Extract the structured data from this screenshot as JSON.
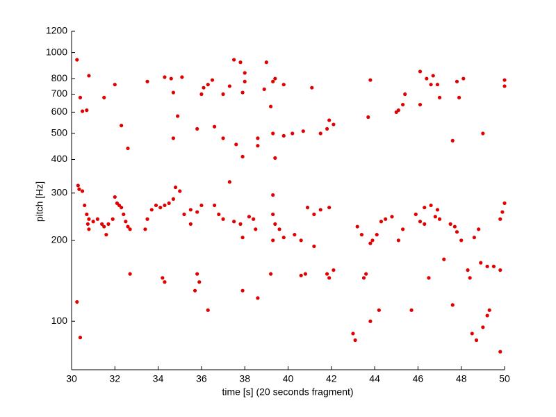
{
  "chart_data": {
    "type": "scatter",
    "xlabel": "time [s] (20 seconds fragment)",
    "ylabel": "pitch [Hz]",
    "color": "#e00000",
    "yscale": "log",
    "xlim": [
      30,
      50
    ],
    "ylim": [
      66,
      1200
    ],
    "xticks": [
      30,
      32,
      34,
      36,
      38,
      40,
      42,
      44,
      46,
      48,
      50
    ],
    "yticks": [
      100,
      200,
      300,
      400,
      500,
      600,
      700,
      800,
      1000,
      1200
    ],
    "x": [
      30.25,
      30.4,
      30.5,
      30.7,
      30.8,
      30.3,
      30.35,
      30.5,
      30.6,
      30.7,
      30.8,
      30.75,
      30.8,
      31.0,
      31.2,
      31.4,
      31.5,
      31.6,
      31.7,
      31.9,
      30.25,
      30.4,
      31.5,
      32.0,
      32.3,
      32.6,
      32.0,
      32.1,
      32.2,
      32.3,
      32.4,
      32.5,
      32.6,
      32.7,
      32.7,
      33.5,
      33.4,
      33.5,
      33.7,
      33.9,
      34.1,
      34.3,
      34.5,
      34.7,
      34.8,
      35.0,
      34.3,
      34.6,
      34.7,
      35.1,
      34.7,
      34.9,
      34.3,
      34.2,
      35.2,
      35.5,
      35.8,
      36.0,
      35.5,
      35.9,
      35.8,
      35.7,
      36.3,
      35.8,
      36.1,
      36.0,
      36.3,
      36.5,
      36.6,
      36.6,
      37.0,
      36.8,
      37.0,
      37.5,
      37.8,
      37.0,
      37.3,
      37.5,
      37.8,
      38.0,
      38.0,
      37.9,
      37.3,
      37.6,
      37.9,
      38.2,
      38.4,
      38.5,
      38.6,
      38.6,
      38.6,
      37.9,
      37.9,
      39.0,
      39.3,
      39.4,
      39.8,
      38.9,
      39.2,
      39.3,
      39.4,
      39.3,
      39.3,
      39.4,
      39.6,
      39.8,
      40.3,
      40.6,
      39.2,
      39.8,
      40.2,
      40.7,
      39.3,
      40.6,
      40.8,
      40.9,
      41.2,
      41.2,
      41.5,
      41.9,
      41.1,
      41.5,
      41.8,
      41.9,
      42.1,
      41.8,
      42.1,
      41.9,
      43.0,
      43.1,
      43.2,
      43.4,
      43.6,
      43.5,
      43.8,
      43.9,
      44.1,
      43.8,
      44.2,
      43.7,
      43.8,
      44.3,
      44.5,
      44.8,
      45.1,
      45.3,
      45.1,
      45.0,
      45.3,
      45.4,
      45.7,
      45.9,
      46.1,
      46.3,
      46.3,
      46.6,
      46.9,
      46.8,
      46.1,
      46.4,
      46.6,
      46.7,
      46.9,
      47.0,
      46.1,
      46.5,
      47.0,
      47.5,
      47.7,
      47.8,
      48.0,
      47.2,
      47.6,
      47.6,
      47.8,
      48.1,
      47.9,
      48.4,
      48.3,
      48.5,
      48.7,
      48.8,
      48.6,
      48.9,
      49.2,
      49.5,
      49.8,
      49.3,
      49.2,
      49.0,
      49.0,
      49.8,
      49.8,
      49.9,
      50.0,
      50.0,
      50.0
    ],
    "values": [
      940,
      680,
      605,
      610,
      820,
      320,
      310,
      305,
      270,
      250,
      240,
      230,
      220,
      235,
      240,
      230,
      225,
      210,
      230,
      240,
      118,
      87,
      680,
      760,
      535,
      440,
      290,
      275,
      270,
      265,
      250,
      235,
      225,
      220,
      150,
      780,
      220,
      240,
      260,
      270,
      265,
      270,
      275,
      285,
      315,
      305,
      810,
      800,
      710,
      810,
      480,
      580,
      140,
      145,
      250,
      260,
      255,
      270,
      230,
      140,
      150,
      130,
      110,
      520,
      740,
      700,
      760,
      790,
      270,
      530,
      480,
      250,
      240,
      235,
      230,
      700,
      750,
      940,
      920,
      840,
      780,
      710,
      330,
      455,
      410,
      245,
      240,
      220,
      480,
      450,
      122,
      130,
      205,
      920,
      780,
      800,
      760,
      730,
      630,
      500,
      405,
      295,
      250,
      230,
      220,
      205,
      210,
      200,
      150,
      490,
      500,
      510,
      200,
      148,
      150,
      265,
      250,
      190,
      260,
      265,
      740,
      500,
      520,
      560,
      540,
      150,
      155,
      145,
      90,
      85,
      225,
      210,
      150,
      145,
      195,
      200,
      210,
      100,
      110,
      575,
      790,
      235,
      240,
      245,
      200,
      220,
      610,
      600,
      640,
      700,
      110,
      250,
      235,
      230,
      265,
      270,
      260,
      245,
      850,
      800,
      760,
      820,
      760,
      680,
      640,
      145,
      240,
      230,
      225,
      215,
      200,
      170,
      115,
      470,
      780,
      800,
      680,
      145,
      155,
      90,
      85,
      220,
      205,
      165,
      160,
      160,
      155,
      110,
      105,
      95,
      500,
      77,
      240,
      255,
      275,
      790,
      750
    ]
  }
}
